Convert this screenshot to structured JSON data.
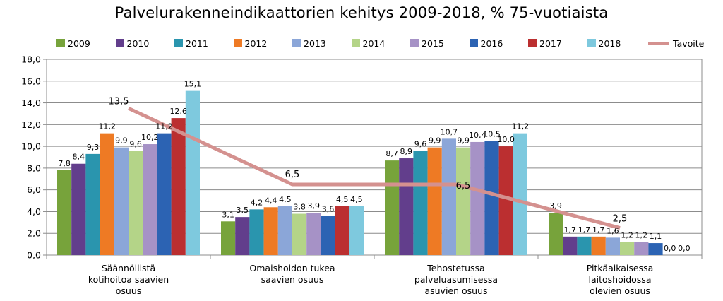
{
  "chart_data": {
    "type": "bar",
    "title": "Palvelurakenneindikaattorien kehitys 2009-2018, % 75-vuotiaista",
    "categories": [
      "Säännöllistä kotihoitoa saavien osuus",
      "Omaishoidon tukea saavien osuus",
      "Tehostetussa palveluasumisessa asuvien osuus",
      "Pitkäaikaisessa laitoshoidossa olevien osuus"
    ],
    "category_lines": [
      [
        "Säännöllistä",
        "kotihoitoa saavien",
        "osuus"
      ],
      [
        "Omaishoidon tukea",
        "saavien osuus"
      ],
      [
        "Tehostetussa",
        "palveluasumisessa",
        "asuvien osuus"
      ],
      [
        "Pitkäaikaisessa",
        "laitoshoidossa",
        "olevien osuus"
      ]
    ],
    "series": [
      {
        "name": "2009",
        "color": "#77a33b",
        "values": [
          7.8,
          3.1,
          8.7,
          3.9
        ],
        "labels": [
          "7,8",
          "3,1",
          "8,7",
          "3,9"
        ]
      },
      {
        "name": "2010",
        "color": "#623e8c",
        "values": [
          8.4,
          3.5,
          8.9,
          1.7
        ],
        "labels": [
          "8,4",
          "3,5",
          "8,9",
          "1,7"
        ]
      },
      {
        "name": "2011",
        "color": "#2a95ae",
        "values": [
          9.3,
          4.2,
          9.6,
          1.7
        ],
        "labels": [
          "9,3",
          "4,2",
          "9,6",
          "1,7"
        ]
      },
      {
        "name": "2012",
        "color": "#ee7a24",
        "values": [
          11.2,
          4.4,
          9.9,
          1.7
        ],
        "labels": [
          "11,2",
          "4,4",
          "9,9",
          "1,7"
        ]
      },
      {
        "name": "2013",
        "color": "#8ba6d8",
        "values": [
          9.9,
          4.5,
          10.7,
          1.6
        ],
        "labels": [
          "9,9",
          "4,5",
          "10,7",
          "1,6"
        ]
      },
      {
        "name": "2014",
        "color": "#b4d488",
        "values": [
          9.6,
          3.8,
          9.9,
          1.2
        ],
        "labels": [
          "9,6",
          "3,8",
          "9,9",
          "1,2"
        ]
      },
      {
        "name": "2015",
        "color": "#a692c6",
        "values": [
          10.2,
          3.9,
          10.4,
          1.2
        ],
        "labels": [
          "10,2",
          "3,9",
          "10,4",
          "1,2"
        ]
      },
      {
        "name": "2016",
        "color": "#2c63b3",
        "values": [
          11.2,
          3.6,
          10.5,
          1.1
        ],
        "labels": [
          "11,2",
          "3,6",
          "10,5",
          "1,1"
        ]
      },
      {
        "name": "2017",
        "color": "#bb2f30",
        "values": [
          12.6,
          4.5,
          10.0,
          0.0
        ],
        "labels": [
          "12,6",
          "4,5",
          "10,0",
          "0,0"
        ]
      },
      {
        "name": "2018",
        "color": "#7ec9de",
        "values": [
          15.1,
          4.5,
          11.2,
          0.0
        ],
        "labels": [
          "15,1",
          "4,5",
          "11,2",
          "0,0"
        ]
      }
    ],
    "target_line": {
      "name": "Tavoite",
      "color": "#d4918f",
      "values": [
        13.5,
        6.5,
        6.5,
        2.5
      ],
      "labels": [
        "13,5",
        "6,5",
        "6,5",
        "2,5"
      ]
    },
    "ylim": [
      0,
      18
    ],
    "yticks": [
      0,
      2,
      4,
      6,
      8,
      10,
      12,
      14,
      16,
      18
    ],
    "ytick_labels": [
      "0,0",
      "2,0",
      "4,0",
      "6,0",
      "8,0",
      "10,0",
      "12,0",
      "14,0",
      "16,0",
      "18,0"
    ],
    "grid": true,
    "legend_position": "top"
  }
}
